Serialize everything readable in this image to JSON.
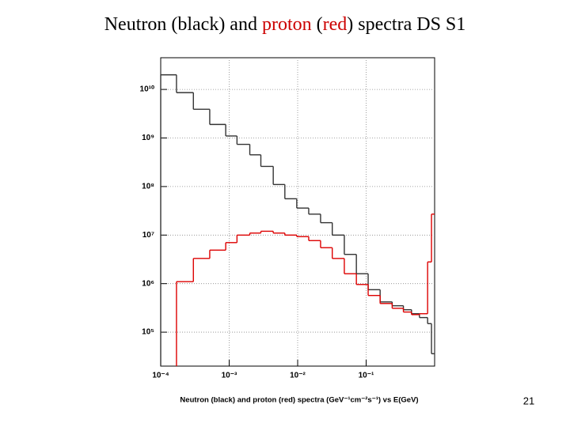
{
  "slide": {
    "title_parts": [
      {
        "text": "Neutron (black) and ",
        "color": "#000000"
      },
      {
        "text": "proton",
        "color": "#cc0000"
      },
      {
        "text": " (",
        "color": "#000000"
      },
      {
        "text": "red",
        "color": "#cc0000"
      },
      {
        "text": ") spectra DS S1",
        "color": "#000000"
      }
    ],
    "page_number": "21"
  },
  "chart_data": {
    "type": "histogram",
    "x_label": "Neutron (black) and proton (red) spectra (GeV⁻¹cm⁻²s⁻¹) vs E(GeV)",
    "xlog": true,
    "ylog": true,
    "grid": true,
    "xlim": [
      0.0001,
      1
    ],
    "ylim": [
      20000,
      45000000000
    ],
    "xticks": [
      {
        "value": 0.0001,
        "label": "10⁻⁴"
      },
      {
        "value": 0.001,
        "label": "10⁻³"
      },
      {
        "value": 0.01,
        "label": "10⁻²"
      },
      {
        "value": 0.1,
        "label": "10⁻¹"
      }
    ],
    "yticks": [
      {
        "value": 100000,
        "label": "10⁵"
      },
      {
        "value": 1000000,
        "label": "10⁶"
      },
      {
        "value": 10000000,
        "label": "10⁷"
      },
      {
        "value": 100000000,
        "label": "10⁸"
      },
      {
        "value": 1000000000,
        "label": "10⁹"
      },
      {
        "value": 10000000000,
        "label": "10¹⁰"
      }
    ],
    "bins": [
      0.0001,
      0.00017,
      0.0003,
      0.00052,
      0.00089,
      0.0013,
      0.002,
      0.0029,
      0.0044,
      0.0065,
      0.0097,
      0.0145,
      0.0216,
      0.032,
      0.048,
      0.072,
      0.107,
      0.16,
      0.24,
      0.35,
      0.46,
      0.6,
      0.79,
      0.9,
      1
    ],
    "series": [
      {
        "color": "#333333",
        "values": [
          20000000000,
          8600000000,
          3900000000,
          1900000000,
          1100000000,
          740000000,
          450000000,
          260000000,
          110000000,
          56000000,
          36000000,
          27000000,
          18000000,
          10000000,
          4000000,
          1600000,
          750000,
          420000,
          350000,
          290000,
          240000,
          200000,
          150000,
          36000
        ]
      },
      {
        "color": "#dd0000",
        "values": [
          null,
          1100000,
          3300000,
          4900000,
          7000000,
          10000000,
          11000000,
          12000000,
          11000000,
          10000000,
          9300000,
          7700000,
          5500000,
          3300000,
          1600000,
          960000,
          570000,
          390000,
          310000,
          260000,
          230000,
          240000,
          2800000,
          27000000
        ]
      }
    ]
  }
}
